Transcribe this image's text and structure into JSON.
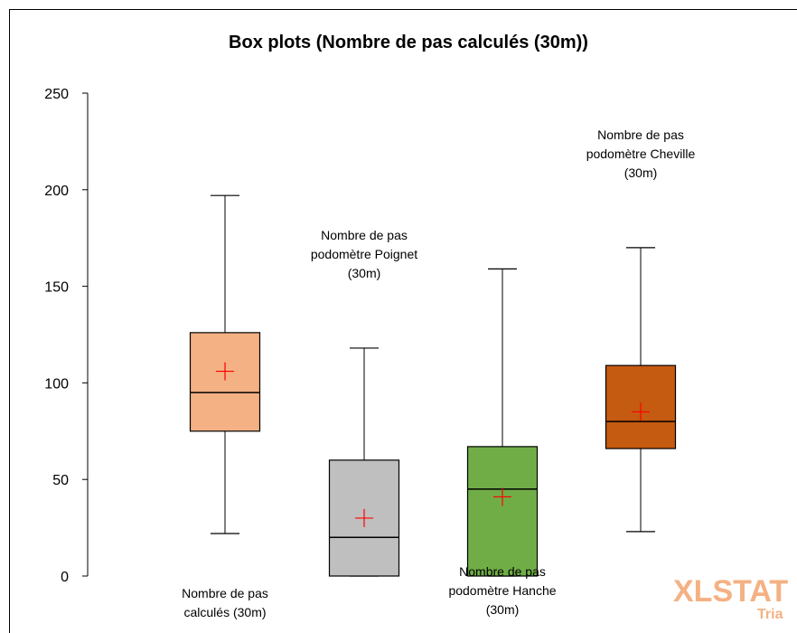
{
  "chart_data": {
    "type": "boxplot",
    "title": "Box plots (Nombre de pas calculés (30m))",
    "ylim": [
      0,
      250
    ],
    "yticks": [
      0,
      50,
      100,
      150,
      200,
      250
    ],
    "grid": false,
    "series": [
      {
        "label_lines": [
          "Nombre de pas",
          "calculés (30m)"
        ],
        "min": 22,
        "q1": 75,
        "median": 95,
        "q3": 126,
        "max": 197,
        "mean": 106,
        "color": "#f4b183"
      },
      {
        "label_lines": [
          "Nombre de pas",
          "podomètre Poignet",
          "(30m)"
        ],
        "min": 0,
        "q1": 0,
        "median": 20,
        "q3": 60,
        "max": 118,
        "mean": 30,
        "color": "#bfbfbf"
      },
      {
        "label_lines": [
          "Nombre de pas",
          "podomètre Hanche",
          "(30m)"
        ],
        "min": 0,
        "q1": 0,
        "median": 45,
        "q3": 67,
        "max": 159,
        "mean": 41,
        "color": "#70ad47"
      },
      {
        "label_lines": [
          "Nombre de pas",
          "podomètre Cheville",
          "(30m)"
        ],
        "min": 23,
        "q1": 66,
        "median": 80,
        "q3": 109,
        "max": 170,
        "mean": 85,
        "color": "#c55a11"
      }
    ],
    "mean_marker_color": "#ff0000"
  },
  "branding": {
    "logo_text": "XLSTAT",
    "logo_sub": "Tria"
  }
}
